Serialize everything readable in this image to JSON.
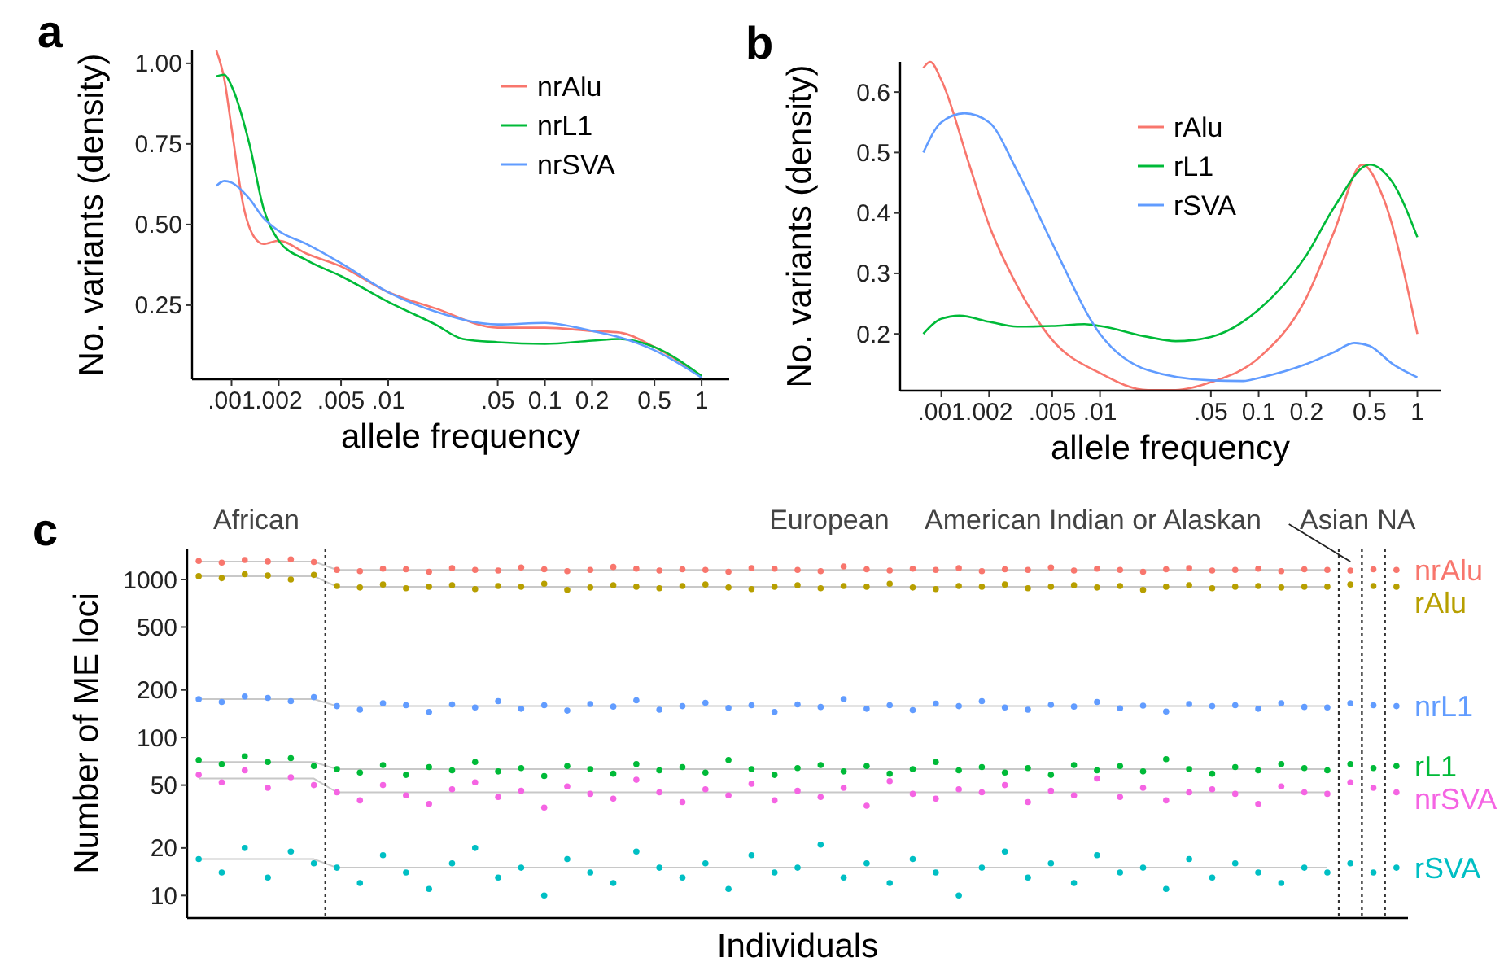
{
  "chart_data": [
    {
      "type": "line",
      "title": "a",
      "xlabel": "allele frequency",
      "ylabel": "No. variants (density)",
      "log": "x",
      "legend": "top right",
      "xlim": [
        0.00056,
        1.5
      ],
      "xticks": [
        {
          "value": 0.001,
          "label": ".001"
        },
        {
          "value": 0.002,
          "label": ".002"
        },
        {
          "value": 0.005,
          "label": ".005"
        },
        {
          "value": 0.01,
          "label": ".01"
        },
        {
          "value": 0.05,
          "label": ".05"
        },
        0.1,
        0.2,
        0.5,
        1
      ],
      "ylim": [
        0.02,
        1.04
      ],
      "yticks": [
        {
          "value": 0.25,
          "label": "0.25"
        },
        {
          "value": 0.5,
          "label": "0.50"
        },
        {
          "value": 0.75,
          "label": "0.75"
        },
        {
          "value": 1,
          "label": "1.00"
        }
      ],
      "series": [
        {
          "name": "nrAlu",
          "color": "#f8766d",
          "x": [
            0.0008,
            0.0009,
            0.001,
            0.0012,
            0.0014,
            0.0016,
            0.002,
            0.003,
            0.005,
            0.01,
            0.02,
            0.05,
            0.1,
            0.2,
            0.3,
            0.5,
            1
          ],
          "values": [
            1.04,
            0.95,
            0.8,
            0.55,
            0.46,
            0.44,
            0.45,
            0.41,
            0.37,
            0.29,
            0.24,
            0.18,
            0.18,
            0.17,
            0.165,
            0.12,
            0.03
          ]
        },
        {
          "name": "nrL1",
          "color": "#00ba38",
          "x": [
            0.0008,
            0.0009,
            0.001,
            0.0013,
            0.0016,
            0.002,
            0.003,
            0.005,
            0.01,
            0.02,
            0.03,
            0.05,
            0.1,
            0.2,
            0.3,
            0.5,
            1
          ],
          "values": [
            0.96,
            0.965,
            0.93,
            0.75,
            0.55,
            0.45,
            0.39,
            0.34,
            0.26,
            0.19,
            0.145,
            0.135,
            0.13,
            0.14,
            0.145,
            0.12,
            0.03
          ]
        },
        {
          "name": "nrSVA",
          "color": "#619cff",
          "x": [
            0.0008,
            0.0009,
            0.001,
            0.0013,
            0.0016,
            0.002,
            0.003,
            0.005,
            0.01,
            0.02,
            0.05,
            0.1,
            0.2,
            0.3,
            0.5,
            1
          ],
          "values": [
            0.62,
            0.635,
            0.63,
            0.58,
            0.52,
            0.48,
            0.44,
            0.38,
            0.29,
            0.23,
            0.19,
            0.195,
            0.17,
            0.15,
            0.11,
            0.025
          ]
        }
      ]
    },
    {
      "type": "line",
      "title": "b",
      "xlabel": "allele frequency",
      "ylabel": "No. variants (density)",
      "log": "x",
      "legend": "top",
      "xlim": [
        0.00055,
        1.4
      ],
      "xticks": [
        {
          "value": 0.001,
          "label": ".001"
        },
        {
          "value": 0.002,
          "label": ".002"
        },
        {
          "value": 0.005,
          "label": ".005"
        },
        {
          "value": 0.01,
          "label": ".01"
        },
        {
          "value": 0.05,
          "label": ".05"
        },
        0.1,
        0.2,
        0.5,
        1
      ],
      "ylim": [
        0.106,
        0.65
      ],
      "yticks": [
        0.2,
        0.3,
        0.4,
        0.5,
        0.6
      ],
      "series": [
        {
          "name": "rAlu",
          "color": "#f8766d",
          "x": [
            0.00077,
            0.00085,
            0.001,
            0.0015,
            0.002,
            0.003,
            0.005,
            0.01,
            0.02,
            0.03,
            0.05,
            0.1,
            0.2,
            0.3,
            0.45,
            0.6,
            1
          ],
          "values": [
            0.64,
            0.65,
            0.62,
            0.48,
            0.38,
            0.28,
            0.19,
            0.135,
            0.107,
            0.107,
            0.12,
            0.16,
            0.26,
            0.37,
            0.48,
            0.43,
            0.2
          ]
        },
        {
          "name": "rL1",
          "color": "#00ba38",
          "x": [
            0.00077,
            0.001,
            0.0013,
            0.002,
            0.003,
            0.005,
            0.008,
            0.01,
            0.02,
            0.03,
            0.05,
            0.1,
            0.2,
            0.3,
            0.5,
            0.7,
            1
          ],
          "values": [
            0.2,
            0.225,
            0.23,
            0.22,
            0.212,
            0.213,
            0.216,
            0.213,
            0.195,
            0.188,
            0.195,
            0.24,
            0.33,
            0.41,
            0.48,
            0.45,
            0.36
          ]
        },
        {
          "name": "rSVA",
          "color": "#619cff",
          "x": [
            0.00077,
            0.001,
            0.0014,
            0.002,
            0.003,
            0.005,
            0.01,
            0.02,
            0.05,
            0.08,
            0.1,
            0.2,
            0.3,
            0.4,
            0.5,
            0.7,
            1
          ],
          "values": [
            0.5,
            0.55,
            0.565,
            0.55,
            0.47,
            0.35,
            0.2,
            0.14,
            0.123,
            0.122,
            0.127,
            0.15,
            0.17,
            0.185,
            0.18,
            0.15,
            0.128
          ]
        }
      ]
    },
    {
      "type": "scatter",
      "title": "c",
      "xlabel": "Individuals",
      "ylabel": "Number of ME loci",
      "log": "y",
      "legend": false,
      "tick_labels": "y",
      "marker": "circle",
      "ylim": [
        7.2,
        1570
      ],
      "yticks": [
        10,
        20,
        50,
        100,
        200,
        500,
        1000
      ],
      "categories": [
        null,
        null,
        null,
        null,
        null,
        null,
        null,
        null,
        null,
        null,
        null,
        null,
        null,
        null,
        null,
        null,
        null,
        null,
        null,
        null,
        null,
        null,
        null,
        null,
        null,
        null,
        null,
        null,
        null,
        null,
        null,
        null,
        null,
        null,
        null,
        null,
        null,
        null,
        null,
        null,
        null,
        null,
        null,
        null,
        null,
        null,
        null,
        null,
        null,
        null,
        null,
        null,
        null
      ],
      "annotations": [
        "African",
        "European",
        "American Indian or Alaskan",
        "Asian",
        "NA"
      ],
      "series": [
        {
          "type": "line",
          "marker": "none",
          "color": "#c8c8c8",
          "values": [
            1300,
            1300,
            1300,
            1300,
            1300,
            1300,
            1150,
            1150,
            1150,
            1150,
            1150,
            1150,
            1150,
            1150,
            1150,
            1150,
            1150,
            1150,
            1150,
            1150,
            1150,
            1150,
            1150,
            1150,
            1150,
            1150,
            1150,
            1150,
            1150,
            1150,
            1150,
            1150,
            1150,
            1150,
            1150,
            1150,
            1150,
            1150,
            1150,
            1150,
            1150,
            1150,
            1150,
            1150,
            1150,
            1150,
            1150,
            1150,
            1150,
            1150,
            null,
            null,
            null
          ]
        },
        {
          "type": "line",
          "marker": "none",
          "color": "#c8c8c8",
          "values": [
            1050,
            1050,
            1050,
            1050,
            1050,
            1050,
            900,
            900,
            900,
            900,
            900,
            900,
            900,
            900,
            900,
            900,
            900,
            900,
            900,
            900,
            900,
            900,
            900,
            900,
            900,
            900,
            900,
            900,
            900,
            900,
            900,
            900,
            900,
            900,
            900,
            900,
            900,
            900,
            900,
            900,
            900,
            900,
            900,
            900,
            900,
            900,
            900,
            900,
            900,
            900,
            null,
            null,
            null
          ]
        },
        {
          "type": "line",
          "marker": "none",
          "color": "#c8c8c8",
          "values": [
            175,
            175,
            175,
            175,
            175,
            175,
            158,
            158,
            158,
            158,
            158,
            158,
            158,
            158,
            158,
            158,
            158,
            158,
            158,
            158,
            158,
            158,
            158,
            158,
            158,
            158,
            158,
            158,
            158,
            158,
            158,
            158,
            158,
            158,
            158,
            158,
            158,
            158,
            158,
            158,
            158,
            158,
            158,
            158,
            158,
            158,
            158,
            158,
            158,
            158,
            null,
            null,
            null
          ]
        },
        {
          "type": "line",
          "marker": "none",
          "color": "#c8c8c8",
          "values": [
            70,
            70,
            70,
            70,
            70,
            70,
            63,
            63,
            63,
            63,
            63,
            63,
            63,
            63,
            63,
            63,
            63,
            63,
            63,
            63,
            63,
            63,
            63,
            63,
            63,
            63,
            63,
            63,
            63,
            63,
            63,
            63,
            63,
            63,
            63,
            63,
            63,
            63,
            63,
            63,
            63,
            63,
            63,
            63,
            63,
            63,
            63,
            63,
            63,
            63,
            null,
            null,
            null
          ]
        },
        {
          "type": "line",
          "marker": "none",
          "color": "#c8c8c8",
          "values": [
            55,
            55,
            55,
            55,
            55,
            55,
            45,
            45,
            45,
            45,
            45,
            45,
            45,
            45,
            45,
            45,
            45,
            45,
            45,
            45,
            45,
            45,
            45,
            45,
            45,
            45,
            45,
            45,
            45,
            45,
            45,
            45,
            45,
            45,
            45,
            45,
            45,
            45,
            45,
            45,
            45,
            45,
            45,
            45,
            45,
            45,
            45,
            45,
            45,
            45,
            null,
            null,
            null
          ]
        },
        {
          "type": "line",
          "marker": "none",
          "color": "#c8c8c8",
          "values": [
            17,
            17,
            17,
            17,
            17,
            17,
            15,
            15,
            15,
            15,
            15,
            15,
            15,
            15,
            15,
            15,
            15,
            15,
            15,
            15,
            15,
            15,
            15,
            15,
            15,
            15,
            15,
            15,
            15,
            15,
            15,
            15,
            15,
            15,
            15,
            15,
            15,
            15,
            15,
            15,
            15,
            15,
            15,
            15,
            15,
            15,
            15,
            15,
            15,
            15,
            null,
            null,
            null
          ]
        },
        {
          "name": "nrAlu",
          "color": "#f8766d",
          "values": [
            1310,
            1280,
            1330,
            1300,
            1340,
            1290,
            1150,
            1130,
            1170,
            1160,
            1120,
            1180,
            1150,
            1140,
            1190,
            1160,
            1130,
            1150,
            1200,
            1170,
            1140,
            1160,
            1150,
            1120,
            1180,
            1170,
            1150,
            1130,
            1210,
            1160,
            1140,
            1170,
            1150,
            1180,
            1130,
            1160,
            1150,
            1190,
            1140,
            1170,
            1150,
            1120,
            1160,
            1180,
            1140,
            1150,
            1170,
            1130,
            1160,
            1150,
            1140,
            1160,
            1150
          ]
        },
        {
          "name": "rAlu",
          "color": "#b79f00",
          "values": [
            1050,
            1020,
            1080,
            1060,
            1000,
            1070,
            910,
            890,
            930,
            880,
            900,
            920,
            870,
            910,
            900,
            940,
            860,
            890,
            920,
            900,
            880,
            910,
            930,
            890,
            870,
            900,
            920,
            880,
            910,
            900,
            940,
            890,
            870,
            910,
            900,
            930,
            880,
            900,
            920,
            890,
            910,
            860,
            900,
            920,
            880,
            900,
            910,
            890,
            900,
            900,
            930,
            910,
            900
          ]
        },
        {
          "name": "nrL1",
          "color": "#619cff",
          "values": [
            175,
            168,
            182,
            178,
            170,
            180,
            158,
            150,
            165,
            160,
            145,
            162,
            155,
            170,
            152,
            160,
            148,
            163,
            157,
            172,
            150,
            158,
            166,
            154,
            160,
            145,
            162,
            156,
            175,
            152,
            160,
            149,
            164,
            158,
            170,
            155,
            150,
            161,
            157,
            168,
            153,
            159,
            146,
            163,
            158,
            160,
            152,
            165,
            156,
            155,
            165,
            160,
            158
          ]
        },
        {
          "name": "rL1",
          "color": "#00ba38",
          "values": [
            72,
            68,
            76,
            70,
            74,
            66,
            63,
            60,
            67,
            58,
            65,
            62,
            70,
            61,
            64,
            57,
            66,
            63,
            59,
            68,
            62,
            65,
            60,
            72,
            63,
            58,
            64,
            67,
            61,
            66,
            59,
            63,
            70,
            62,
            65,
            60,
            64,
            58,
            67,
            62,
            66,
            61,
            73,
            63,
            59,
            65,
            62,
            68,
            64,
            62,
            68,
            64,
            66
          ]
        },
        {
          "name": "nrSVA",
          "color": "#f564e3",
          "values": [
            58,
            52,
            62,
            48,
            56,
            50,
            45,
            40,
            50,
            43,
            38,
            47,
            52,
            42,
            46,
            36,
            49,
            44,
            41,
            54,
            45,
            39,
            47,
            43,
            51,
            40,
            46,
            42,
            48,
            37,
            53,
            44,
            41,
            47,
            45,
            50,
            39,
            46,
            43,
            55,
            42,
            48,
            40,
            45,
            47,
            44,
            38,
            49,
            45,
            44,
            52,
            48,
            45
          ]
        },
        {
          "name": "rSVA",
          "color": "#00bfc4",
          "values": [
            17,
            14,
            20,
            13,
            19,
            16,
            15,
            12,
            18,
            14,
            11,
            16,
            20,
            13,
            15,
            10,
            17,
            14,
            12,
            19,
            15,
            13,
            16,
            11,
            18,
            14,
            15,
            21,
            13,
            16,
            12,
            17,
            14,
            10,
            15,
            19,
            13,
            16,
            12,
            18,
            14,
            15,
            11,
            17,
            13,
            16,
            14,
            12,
            15,
            14,
            16,
            14,
            15
          ]
        }
      ]
    }
  ]
}
